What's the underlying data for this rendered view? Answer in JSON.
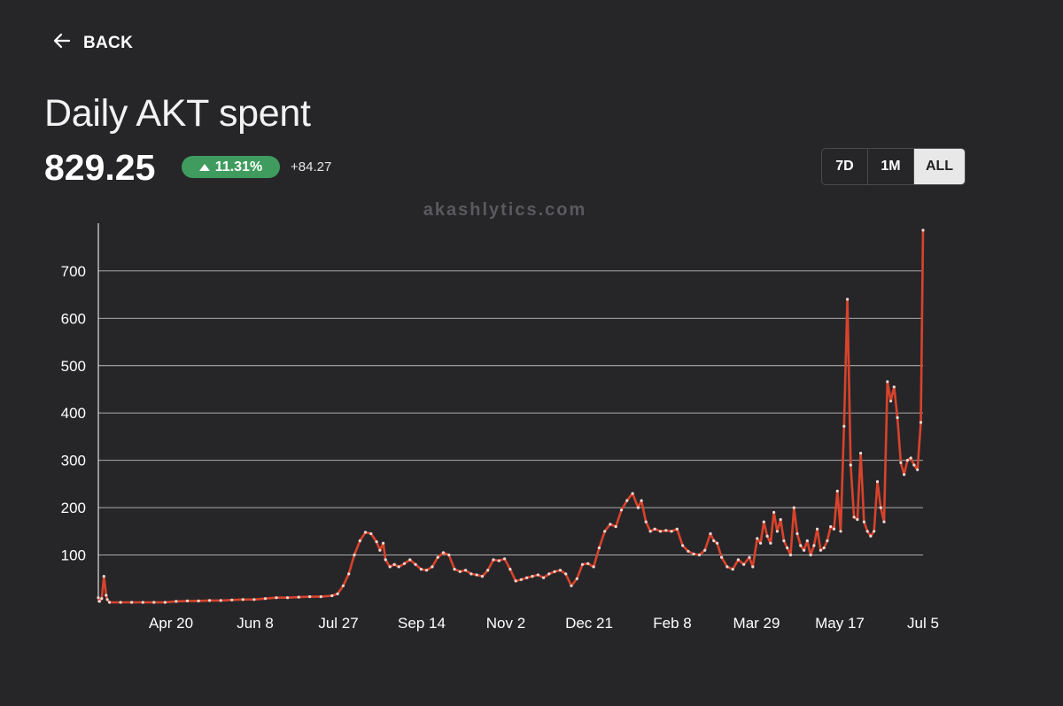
{
  "nav": {
    "back_label": "BACK"
  },
  "header": {
    "title": "Daily AKT spent",
    "value": "829.25",
    "change_percent": "11.31%",
    "change_abs": "+84.27"
  },
  "range": {
    "options": [
      "7D",
      "1M",
      "ALL"
    ],
    "selected": "ALL"
  },
  "watermark": "akashlytics.com",
  "colors": {
    "line": "#d8432b",
    "badge": "#3f9c5e",
    "background": "#262629"
  },
  "chart_data": {
    "type": "line",
    "title": "Daily AKT spent",
    "x_tick_labels": [
      "Apr 20",
      "Jun 8",
      "Jul 27",
      "Sep 14",
      "Nov 2",
      "Dec 21",
      "Feb 8",
      "Mar 29",
      "May 17",
      "Jul 5"
    ],
    "y_tick_labels": [
      "100",
      "200",
      "300",
      "400",
      "500",
      "600",
      "700"
    ],
    "ylim": [
      0,
      800
    ],
    "grid": "horizontal",
    "series": [
      {
        "points": [
          [
            0,
            10
          ],
          [
            1,
            2
          ],
          [
            3,
            8
          ],
          [
            5,
            55
          ],
          [
            7,
            15
          ],
          [
            8,
            6
          ],
          [
            10,
            0
          ],
          [
            20,
            0
          ],
          [
            30,
            0
          ],
          [
            40,
            0
          ],
          [
            50,
            0
          ],
          [
            60,
            0
          ],
          [
            70,
            2
          ],
          [
            80,
            3
          ],
          [
            90,
            3
          ],
          [
            100,
            4
          ],
          [
            110,
            4
          ],
          [
            120,
            5
          ],
          [
            130,
            6
          ],
          [
            140,
            6
          ],
          [
            150,
            8
          ],
          [
            160,
            10
          ],
          [
            170,
            10
          ],
          [
            180,
            11
          ],
          [
            190,
            12
          ],
          [
            200,
            12
          ],
          [
            210,
            14
          ],
          [
            215,
            18
          ],
          [
            220,
            35
          ],
          [
            225,
            60
          ],
          [
            230,
            100
          ],
          [
            235,
            130
          ],
          [
            240,
            148
          ],
          [
            245,
            145
          ],
          [
            250,
            128
          ],
          [
            253,
            110
          ],
          [
            256,
            125
          ],
          [
            258,
            90
          ],
          [
            262,
            75
          ],
          [
            266,
            80
          ],
          [
            270,
            75
          ],
          [
            275,
            82
          ],
          [
            280,
            90
          ],
          [
            285,
            80
          ],
          [
            290,
            70
          ],
          [
            295,
            68
          ],
          [
            300,
            75
          ],
          [
            305,
            95
          ],
          [
            310,
            105
          ],
          [
            315,
            100
          ],
          [
            320,
            70
          ],
          [
            325,
            65
          ],
          [
            330,
            68
          ],
          [
            335,
            60
          ],
          [
            340,
            58
          ],
          [
            345,
            55
          ],
          [
            350,
            68
          ],
          [
            355,
            90
          ],
          [
            360,
            88
          ],
          [
            365,
            92
          ],
          [
            370,
            70
          ],
          [
            375,
            45
          ],
          [
            380,
            48
          ],
          [
            385,
            52
          ],
          [
            390,
            55
          ],
          [
            395,
            58
          ],
          [
            400,
            52
          ],
          [
            405,
            60
          ],
          [
            410,
            65
          ],
          [
            415,
            68
          ],
          [
            420,
            60
          ],
          [
            425,
            35
          ],
          [
            430,
            50
          ],
          [
            435,
            80
          ],
          [
            440,
            82
          ],
          [
            445,
            75
          ],
          [
            450,
            115
          ],
          [
            455,
            150
          ],
          [
            460,
            165
          ],
          [
            465,
            160
          ],
          [
            470,
            195
          ],
          [
            475,
            215
          ],
          [
            480,
            230
          ],
          [
            485,
            200
          ],
          [
            488,
            215
          ],
          [
            492,
            170
          ],
          [
            496,
            150
          ],
          [
            500,
            155
          ],
          [
            505,
            150
          ],
          [
            510,
            152
          ],
          [
            515,
            150
          ],
          [
            520,
            155
          ],
          [
            525,
            120
          ],
          [
            530,
            108
          ],
          [
            535,
            102
          ],
          [
            540,
            100
          ],
          [
            545,
            110
          ],
          [
            550,
            145
          ],
          [
            553,
            130
          ],
          [
            556,
            125
          ],
          [
            560,
            95
          ],
          [
            565,
            75
          ],
          [
            570,
            70
          ],
          [
            575,
            90
          ],
          [
            580,
            80
          ],
          [
            585,
            95
          ],
          [
            588,
            75
          ],
          [
            592,
            135
          ],
          [
            595,
            125
          ],
          [
            598,
            170
          ],
          [
            601,
            140
          ],
          [
            604,
            125
          ],
          [
            607,
            190
          ],
          [
            610,
            150
          ],
          [
            613,
            175
          ],
          [
            616,
            130
          ],
          [
            619,
            115
          ],
          [
            622,
            100
          ],
          [
            625,
            200
          ],
          [
            628,
            145
          ],
          [
            631,
            120
          ],
          [
            634,
            110
          ],
          [
            637,
            130
          ],
          [
            640,
            100
          ],
          [
            643,
            120
          ],
          [
            646,
            155
          ],
          [
            649,
            110
          ],
          [
            652,
            115
          ],
          [
            655,
            130
          ],
          [
            658,
            160
          ],
          [
            661,
            155
          ],
          [
            664,
            235
          ],
          [
            667,
            150
          ],
          [
            670,
            372
          ],
          [
            673,
            640
          ],
          [
            676,
            290
          ],
          [
            679,
            180
          ],
          [
            682,
            175
          ],
          [
            685,
            315
          ],
          [
            688,
            170
          ],
          [
            691,
            150
          ],
          [
            694,
            140
          ],
          [
            697,
            150
          ],
          [
            700,
            255
          ],
          [
            703,
            200
          ],
          [
            706,
            170
          ],
          [
            709,
            466
          ],
          [
            712,
            425
          ],
          [
            715,
            455
          ],
          [
            718,
            390
          ],
          [
            721,
            295
          ],
          [
            724,
            270
          ],
          [
            727,
            300
          ],
          [
            730,
            305
          ],
          [
            733,
            290
          ],
          [
            736,
            280
          ],
          [
            739,
            380
          ],
          [
            741,
            786
          ]
        ]
      }
    ]
  }
}
